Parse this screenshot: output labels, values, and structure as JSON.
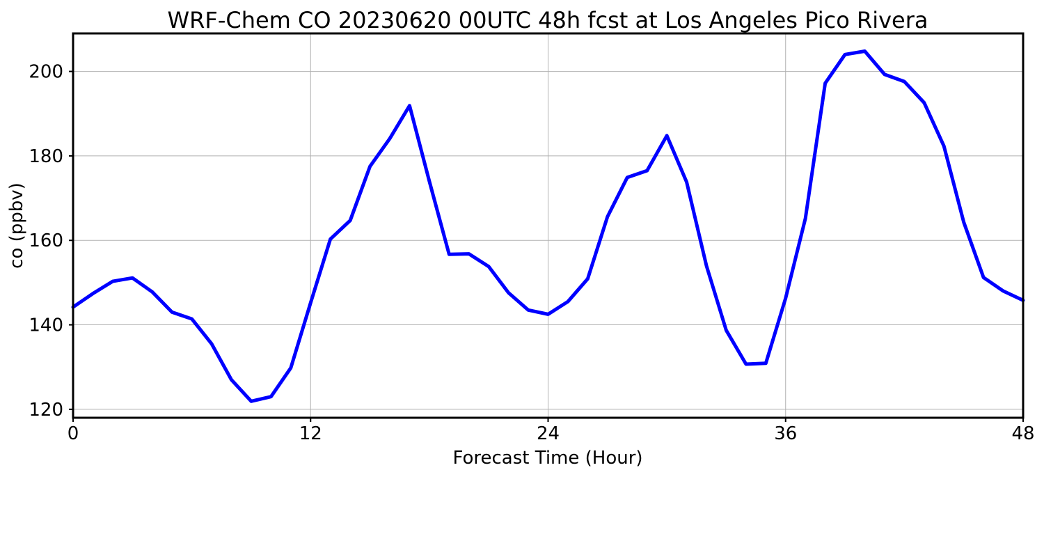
{
  "chart_data": {
    "type": "line",
    "title": "WRF-Chem CO  20230620 00UTC 48h fcst at Los Angeles Pico Rivera",
    "xlabel": "Forecast Time (Hour)",
    "ylabel": "co  (ppbv)",
    "xlim": [
      0,
      48
    ],
    "ylim": [
      118,
      209
    ],
    "xticks": [
      0,
      12,
      24,
      36,
      48
    ],
    "yticks": [
      120,
      140,
      160,
      180,
      200
    ],
    "grid": true,
    "series": [
      {
        "color": "#0000ff",
        "x": [
          0,
          1,
          2,
          3,
          4,
          5,
          6,
          7,
          8,
          9,
          10,
          11,
          12,
          13,
          14,
          15,
          16,
          17,
          18,
          19,
          20,
          21,
          22,
          23,
          24,
          25,
          26,
          27,
          28,
          29,
          30,
          31,
          32,
          33,
          34,
          35,
          36,
          37,
          38,
          39,
          40,
          41,
          42,
          43,
          44,
          45,
          46,
          47,
          48
        ],
        "values": [
          144.2,
          147.4,
          150.3,
          151.1,
          147.8,
          143.0,
          141.4,
          135.5,
          127.0,
          121.9,
          123.0,
          129.8,
          145.2,
          160.3,
          164.7,
          177.5,
          184.1,
          191.9,
          174.0,
          156.7,
          156.8,
          153.8,
          147.6,
          143.5,
          142.5,
          145.5,
          150.9,
          165.6,
          174.9,
          176.5,
          184.8,
          173.8,
          154.0,
          138.7,
          130.7,
          130.9,
          146.3,
          165.2,
          197.2,
          204.0,
          204.8,
          199.3,
          197.6,
          192.6,
          182.3,
          164.3,
          151.2,
          148.0,
          145.8
        ]
      }
    ]
  }
}
